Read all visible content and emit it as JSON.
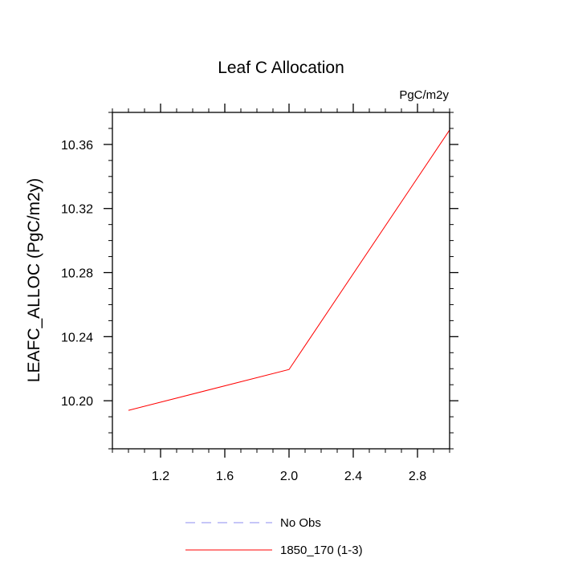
{
  "chart_data": {
    "type": "line",
    "title": "Leaf C Allocation",
    "units_label": "PgC/m2y",
    "xlabel": "",
    "ylabel": "LEAFC_ALLOC  (PgC/m2y)",
    "xlim": [
      0.9,
      3.0
    ],
    "ylim": [
      10.17,
      10.38
    ],
    "x_major_ticks": [
      "1.2",
      "1.6",
      "2.0",
      "2.4",
      "2.8"
    ],
    "y_major_ticks": [
      "10.20",
      "10.24",
      "10.28",
      "10.32",
      "10.36"
    ],
    "x_minor_step": 0.1,
    "y_minor_step": 0.01,
    "grid": false,
    "legend_position": "bottom-center",
    "series": [
      {
        "name": "No Obs",
        "color": "#8c8cf0",
        "dash": "dashed",
        "x": [],
        "y": []
      },
      {
        "name": "1850_170 (1-3)",
        "color": "#ff0000",
        "dash": "solid",
        "x": [
          1.0,
          2.0,
          3.0
        ],
        "y": [
          10.194,
          10.2195,
          10.369
        ]
      }
    ]
  }
}
